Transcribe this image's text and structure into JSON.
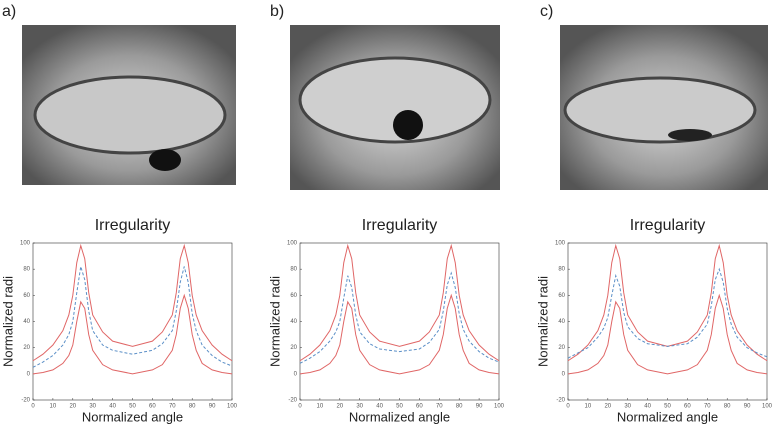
{
  "panel_labels": [
    "a)",
    "b)",
    "c)"
  ],
  "chart_data": [
    {
      "type": "line",
      "title": "Irregularity",
      "xlabel": "Normalized angle",
      "ylabel": "Normalized radi",
      "xlim": [
        0,
        100
      ],
      "ylim": [
        -20,
        100
      ],
      "xticks": [
        0,
        10,
        20,
        30,
        40,
        50,
        60,
        70,
        80,
        90,
        100
      ],
      "yticks": [
        -20,
        0,
        20,
        40,
        60,
        80,
        100
      ],
      "x": [
        0,
        5,
        10,
        15,
        18,
        20,
        22,
        24,
        26,
        28,
        30,
        35,
        40,
        50,
        60,
        65,
        70,
        72,
        74,
        76,
        78,
        80,
        82,
        85,
        90,
        95,
        100
      ],
      "series": [
        {
          "color": "#e06666",
          "dash": false,
          "values": [
            10,
            15,
            22,
            33,
            45,
            60,
            85,
            98,
            88,
            62,
            45,
            32,
            25,
            21,
            25,
            32,
            45,
            62,
            88,
            98,
            85,
            60,
            45,
            33,
            22,
            15,
            10
          ]
        },
        {
          "color": "#e06666",
          "dash": false,
          "values": [
            0,
            1,
            3,
            8,
            14,
            22,
            40,
            55,
            50,
            30,
            18,
            7,
            3,
            0,
            3,
            7,
            18,
            30,
            50,
            60,
            50,
            30,
            18,
            8,
            3,
            1,
            0
          ]
        },
        {
          "color": "#5b8fc7",
          "dash": true,
          "values": [
            5,
            9,
            14,
            22,
            30,
            40,
            62,
            82,
            72,
            48,
            33,
            22,
            18,
            15,
            18,
            23,
            33,
            48,
            70,
            82,
            70,
            46,
            33,
            22,
            14,
            9,
            6
          ]
        }
      ]
    },
    {
      "type": "line",
      "title": "Irregularity",
      "xlabel": "Normalized angle",
      "ylabel": "Normalized radi",
      "xlim": [
        0,
        100
      ],
      "ylim": [
        -20,
        100
      ],
      "xticks": [
        0,
        10,
        20,
        30,
        40,
        50,
        60,
        70,
        80,
        90,
        100
      ],
      "yticks": [
        -20,
        0,
        20,
        40,
        60,
        80,
        100
      ],
      "x": [
        0,
        5,
        10,
        15,
        18,
        20,
        22,
        24,
        26,
        28,
        30,
        35,
        40,
        50,
        60,
        65,
        70,
        72,
        74,
        76,
        78,
        80,
        82,
        85,
        90,
        95,
        100
      ],
      "series": [
        {
          "color": "#e06666",
          "dash": false,
          "values": [
            10,
            15,
            22,
            33,
            45,
            60,
            85,
            98,
            88,
            62,
            45,
            32,
            25,
            21,
            25,
            32,
            45,
            62,
            88,
            98,
            85,
            60,
            45,
            33,
            22,
            15,
            10
          ]
        },
        {
          "color": "#e06666",
          "dash": false,
          "values": [
            0,
            1,
            3,
            8,
            14,
            22,
            40,
            55,
            50,
            30,
            18,
            7,
            3,
            0,
            3,
            7,
            18,
            30,
            50,
            60,
            50,
            30,
            18,
            8,
            3,
            1,
            0
          ]
        },
        {
          "color": "#5b8fc7",
          "dash": true,
          "values": [
            8,
            12,
            17,
            25,
            32,
            40,
            58,
            75,
            66,
            45,
            32,
            23,
            19,
            17,
            19,
            24,
            34,
            48,
            68,
            77,
            66,
            46,
            34,
            25,
            17,
            12,
            9
          ]
        }
      ]
    },
    {
      "type": "line",
      "title": "Irregularity",
      "xlabel": "Normalized angle",
      "ylabel": "Normalized radi",
      "xlim": [
        0,
        100
      ],
      "ylim": [
        -20,
        100
      ],
      "xticks": [
        0,
        10,
        20,
        30,
        40,
        50,
        60,
        70,
        80,
        90,
        100
      ],
      "yticks": [
        -20,
        0,
        20,
        40,
        60,
        80,
        100
      ],
      "x": [
        0,
        5,
        10,
        15,
        18,
        20,
        22,
        24,
        26,
        28,
        30,
        35,
        40,
        50,
        60,
        65,
        70,
        72,
        74,
        76,
        78,
        80,
        82,
        85,
        90,
        95,
        100
      ],
      "series": [
        {
          "color": "#e06666",
          "dash": false,
          "values": [
            10,
            15,
            22,
            33,
            45,
            60,
            85,
            98,
            88,
            62,
            45,
            32,
            25,
            21,
            25,
            32,
            45,
            62,
            88,
            98,
            85,
            60,
            45,
            33,
            22,
            15,
            10
          ]
        },
        {
          "color": "#e06666",
          "dash": false,
          "values": [
            0,
            1,
            3,
            8,
            14,
            22,
            40,
            55,
            50,
            30,
            18,
            7,
            3,
            0,
            3,
            7,
            18,
            30,
            50,
            60,
            50,
            30,
            18,
            8,
            3,
            1,
            0
          ]
        },
        {
          "color": "#5b8fc7",
          "dash": true,
          "values": [
            12,
            16,
            20,
            28,
            35,
            43,
            60,
            75,
            67,
            47,
            36,
            27,
            23,
            21,
            23,
            28,
            38,
            52,
            72,
            80,
            70,
            50,
            38,
            28,
            20,
            16,
            13
          ]
        }
      ]
    }
  ]
}
